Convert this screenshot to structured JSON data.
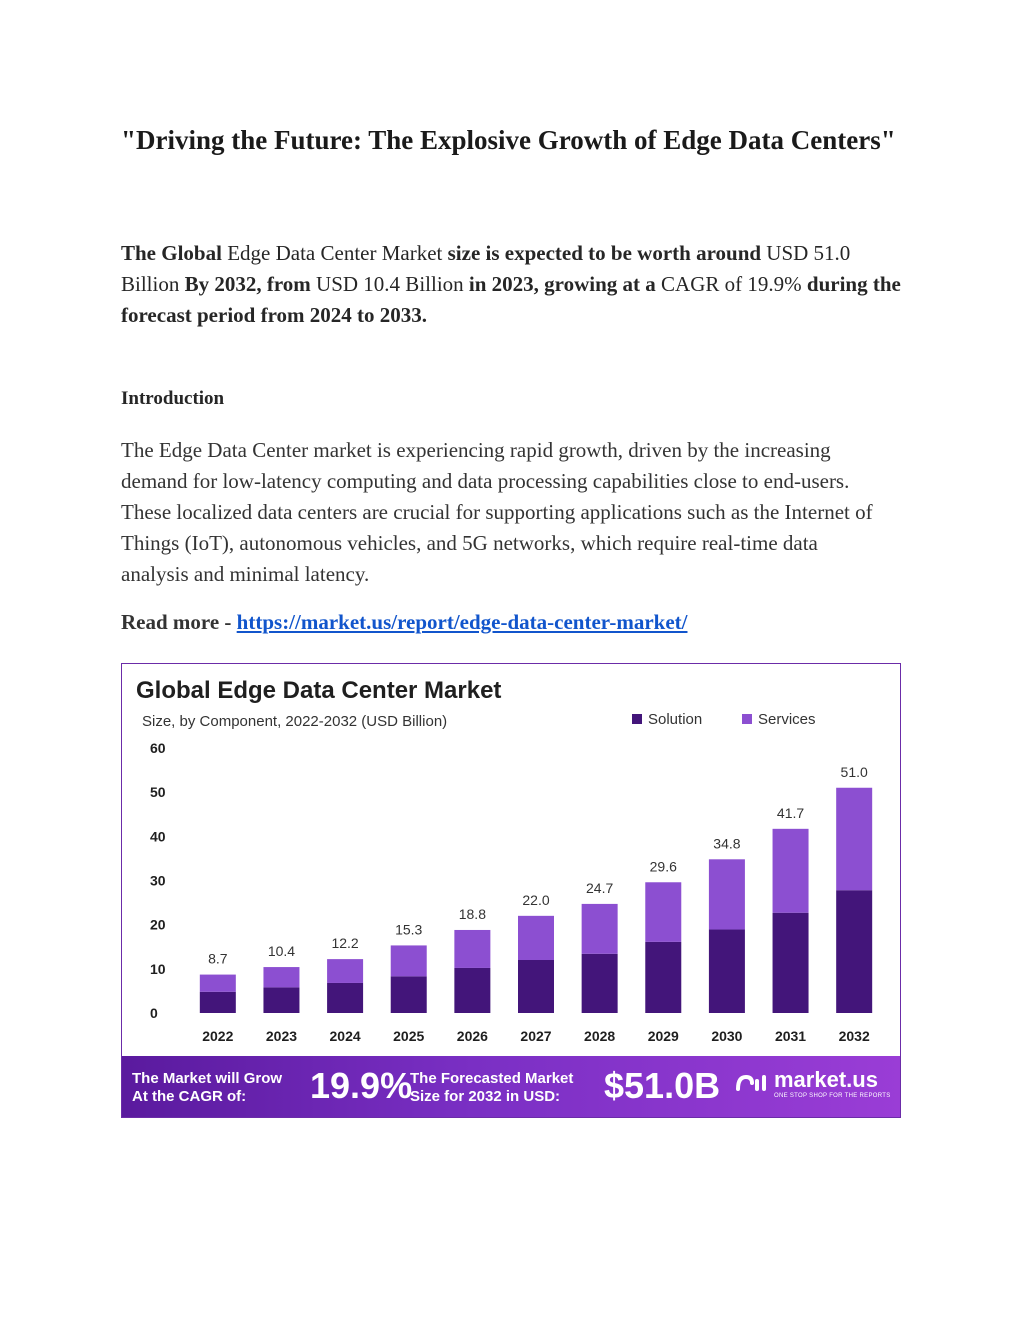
{
  "document": {
    "title": "\"Driving the Future: The Explosive Growth of Edge Data Centers\"",
    "summary": {
      "part1_bold": "The Global",
      "part2": " Edge Data Center Market ",
      "part3_bold": "size is expected to be worth around",
      "part4": " USD 51.0 Billion ",
      "part5_bold": "By 2032, from",
      "part6": " USD 10.4 Billion ",
      "part7_bold": "in 2023, growing at a",
      "part8": " CAGR of 19.9% ",
      "part9_bold": "during the forecast period from 2024 to 2033."
    },
    "intro_heading": "Introduction",
    "intro_text": "The Edge Data Center market is experiencing rapid growth, driven by the increasing demand for low-latency computing and data processing capabilities close to end-users. These localized data centers are crucial for supporting applications such as the Internet of Things (IoT), autonomous vehicles, and 5G networks, which require real-time data analysis and minimal latency.",
    "read_more_label": "Read more - ",
    "read_more_link": "https://market.us/report/edge-data-center-market/"
  },
  "colors": {
    "solution": "#43157a",
    "services": "#8c4fd1",
    "banner_start": "#5a1a9e",
    "banner_end": "#9a3dd6",
    "link": "#1155cc"
  },
  "chart_data": {
    "type": "bar",
    "stacked": true,
    "title": "Global Edge Data Center Market",
    "subtitle": "Size, by Component, 2022-2032 (USD Billion)",
    "categories": [
      "2022",
      "2023",
      "2024",
      "2025",
      "2026",
      "2027",
      "2028",
      "2029",
      "2030",
      "2031",
      "2032"
    ],
    "series": [
      {
        "name": "Solution",
        "values": [
          4.8,
          5.8,
          6.8,
          8.3,
          10.2,
          12.0,
          13.4,
          16.1,
          18.9,
          22.7,
          27.8
        ]
      },
      {
        "name": "Services",
        "values": [
          3.9,
          4.6,
          5.4,
          7.0,
          8.6,
          10.0,
          11.3,
          13.5,
          15.9,
          19.0,
          23.2
        ]
      }
    ],
    "totals": [
      "8.7",
      "10.4",
      "12.2",
      "15.3",
      "18.8",
      "22.0",
      "24.7",
      "29.6",
      "34.8",
      "41.7",
      "51.0"
    ],
    "yticks": [
      "0",
      "10",
      "20",
      "30",
      "40",
      "50",
      "60"
    ],
    "ylim": [
      0,
      60
    ],
    "grid": false,
    "legend_position": "top-right",
    "banner": {
      "cagr_label_line1": "The Market will Grow",
      "cagr_label_line2": "At the CAGR of:",
      "cagr_value": "19.9%",
      "forecast_label_line1": "The Forecasted Market",
      "forecast_label_line2": "Size for 2032 in USD:",
      "forecast_value": "$51.0B",
      "brand_name": "market.us",
      "brand_tagline": "ONE STOP SHOP FOR THE REPORTS"
    }
  }
}
